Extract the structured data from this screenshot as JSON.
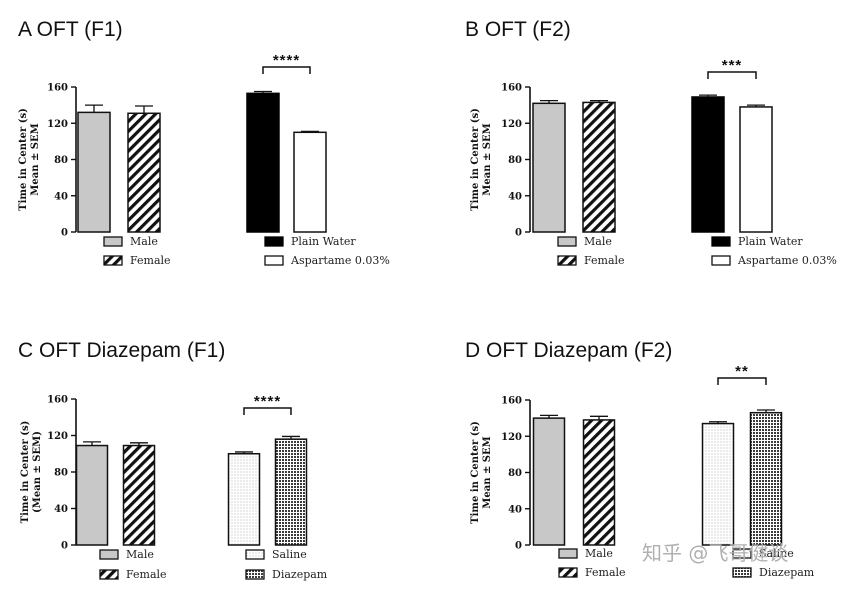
{
  "watermark": "知乎 @飞哥健谈",
  "colors": {
    "male": "#c8c8c8",
    "plain_water": "#000000",
    "aspartame": "#ffffff"
  },
  "chart_data": [
    {
      "panel": "A",
      "title": "A OFT (F1)",
      "type": "bar",
      "ylabel": [
        "Time in Center (s)",
        "Mean ± SEM"
      ],
      "ylim": [
        0,
        160
      ],
      "yticks": [
        0,
        40,
        80,
        120,
        160
      ],
      "groups": [
        {
          "bars": [
            {
              "name": "Male",
              "value": 132,
              "sem": 8,
              "fill": "gray"
            },
            {
              "name": "Female",
              "value": 131,
              "sem": 8,
              "fill": "diag"
            }
          ]
        },
        {
          "bars": [
            {
              "name": "Plain Water",
              "value": 153,
              "sem": 2,
              "fill": "black"
            },
            {
              "name": "Aspartame 0.03%",
              "value": 110,
              "sem": 1,
              "fill": "white"
            }
          ],
          "significance": "****"
        }
      ]
    },
    {
      "panel": "B",
      "title": "B OFT (F2)",
      "type": "bar",
      "ylabel": [
        "Time in Center (s)",
        "Mean ± SEM"
      ],
      "ylim": [
        0,
        160
      ],
      "yticks": [
        0,
        40,
        80,
        120,
        160
      ],
      "groups": [
        {
          "bars": [
            {
              "name": "Male",
              "value": 142,
              "sem": 3,
              "fill": "gray"
            },
            {
              "name": "Female",
              "value": 143,
              "sem": 2,
              "fill": "diag"
            }
          ]
        },
        {
          "bars": [
            {
              "name": "Plain Water",
              "value": 149,
              "sem": 2,
              "fill": "black"
            },
            {
              "name": "Aspartame 0.03%",
              "value": 138,
              "sem": 2,
              "fill": "white"
            }
          ],
          "significance": "***"
        }
      ]
    },
    {
      "panel": "C",
      "title": "C OFT Diazepam (F1)",
      "type": "bar",
      "ylabel": [
        "Time in Center (s)",
        "(Mean ± SEM)"
      ],
      "ylim": [
        0,
        160
      ],
      "yticks": [
        0,
        40,
        80,
        120,
        160
      ],
      "groups": [
        {
          "bars": [
            {
              "name": "Male",
              "value": 109,
              "sem": 4,
              "fill": "gray"
            },
            {
              "name": "Female",
              "value": 109,
              "sem": 3,
              "fill": "diag"
            }
          ]
        },
        {
          "bars": [
            {
              "name": "Saline",
              "value": 100,
              "sem": 2,
              "fill": "dots"
            },
            {
              "name": "Diazepam",
              "value": 116,
              "sem": 3,
              "fill": "cross"
            }
          ],
          "significance": "****"
        }
      ]
    },
    {
      "panel": "D",
      "title": "D OFT Diazepam (F2)",
      "type": "bar",
      "ylabel": [
        "Time in Center (s)",
        "Mean ± SEM"
      ],
      "ylim": [
        0,
        160
      ],
      "yticks": [
        0,
        40,
        80,
        120,
        160
      ],
      "groups": [
        {
          "bars": [
            {
              "name": "Male",
              "value": 140,
              "sem": 3,
              "fill": "gray"
            },
            {
              "name": "Female",
              "value": 138,
              "sem": 4,
              "fill": "diag"
            }
          ]
        },
        {
          "bars": [
            {
              "name": "Saline",
              "value": 134,
              "sem": 2,
              "fill": "dots"
            },
            {
              "name": "Diazepam",
              "value": 146,
              "sem": 3,
              "fill": "cross"
            }
          ],
          "significance": "**"
        }
      ]
    }
  ]
}
